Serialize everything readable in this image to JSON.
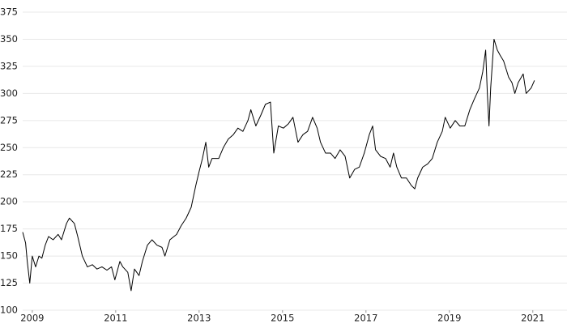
{
  "chart_data": {
    "type": "line",
    "x": [
      2008.77,
      2008.84,
      2008.88,
      2008.94,
      2009.0,
      2009.08,
      2009.16,
      2009.23,
      2009.31,
      2009.39,
      2009.5,
      2009.62,
      2009.7,
      2009.82,
      2009.89,
      2010.01,
      2010.09,
      2010.2,
      2010.32,
      2010.44,
      2010.55,
      2010.67,
      2010.79,
      2010.9,
      2010.98,
      2011.1,
      2011.17,
      2011.29,
      2011.37,
      2011.45,
      2011.56,
      2011.64,
      2011.76,
      2011.87,
      2011.99,
      2012.11,
      2012.18,
      2012.3,
      2012.46,
      2012.57,
      2012.69,
      2012.81,
      2012.92,
      2013.0,
      2013.08,
      2013.16,
      2013.23,
      2013.31,
      2013.47,
      2013.58,
      2013.7,
      2013.82,
      2013.93,
      2014.05,
      2014.17,
      2014.24,
      2014.36,
      2014.48,
      2014.59,
      2014.71,
      2014.79,
      2014.9,
      2015.02,
      2015.14,
      2015.25,
      2015.37,
      2015.49,
      2015.6,
      2015.72,
      2015.83,
      2015.91,
      2016.03,
      2016.15,
      2016.26,
      2016.38,
      2016.5,
      2016.61,
      2016.73,
      2016.84,
      2016.96,
      2017.08,
      2017.16,
      2017.23,
      2017.35,
      2017.47,
      2017.58,
      2017.66,
      2017.74,
      2017.85,
      2017.97,
      2018.09,
      2018.17,
      2018.24,
      2018.36,
      2018.48,
      2018.59,
      2018.71,
      2018.83,
      2018.9,
      2019.02,
      2019.14,
      2019.25,
      2019.37,
      2019.49,
      2019.6,
      2019.72,
      2019.8,
      2019.87,
      2019.91,
      2019.95,
      2019.99,
      2020.07,
      2020.15,
      2020.22,
      2020.3,
      2020.42,
      2020.5,
      2020.57,
      2020.65,
      2020.77,
      2020.84,
      2020.96,
      2021.04
    ],
    "values": [
      172,
      162,
      145,
      125,
      150,
      140,
      150,
      148,
      160,
      168,
      165,
      170,
      165,
      180,
      185,
      180,
      168,
      150,
      140,
      142,
      138,
      140,
      137,
      140,
      128,
      145,
      140,
      135,
      118,
      138,
      132,
      145,
      160,
      165,
      160,
      158,
      150,
      165,
      170,
      178,
      185,
      195,
      215,
      228,
      240,
      255,
      232,
      240,
      240,
      250,
      258,
      262,
      268,
      265,
      275,
      285,
      270,
      280,
      290,
      292,
      245,
      270,
      268,
      272,
      278,
      255,
      262,
      265,
      278,
      268,
      255,
      245,
      245,
      240,
      248,
      242,
      222,
      230,
      232,
      245,
      262,
      270,
      248,
      242,
      240,
      232,
      245,
      232,
      222,
      222,
      215,
      212,
      222,
      232,
      235,
      240,
      255,
      265,
      278,
      268,
      275,
      270,
      270,
      285,
      295,
      305,
      320,
      340,
      300,
      270,
      305,
      350,
      340,
      335,
      330,
      315,
      310,
      300,
      310,
      318,
      300,
      305,
      312
    ],
    "color": "#000000",
    "xlim": [
      2008.77,
      2021.82
    ],
    "xticks": [
      2009,
      2011,
      2013,
      2015,
      2017,
      2019,
      2021
    ],
    "ylim": [
      100,
      375
    ],
    "yticks": [
      100,
      125,
      150,
      175,
      200,
      225,
      250,
      275,
      300,
      325,
      350,
      375
    ],
    "grid": true
  }
}
